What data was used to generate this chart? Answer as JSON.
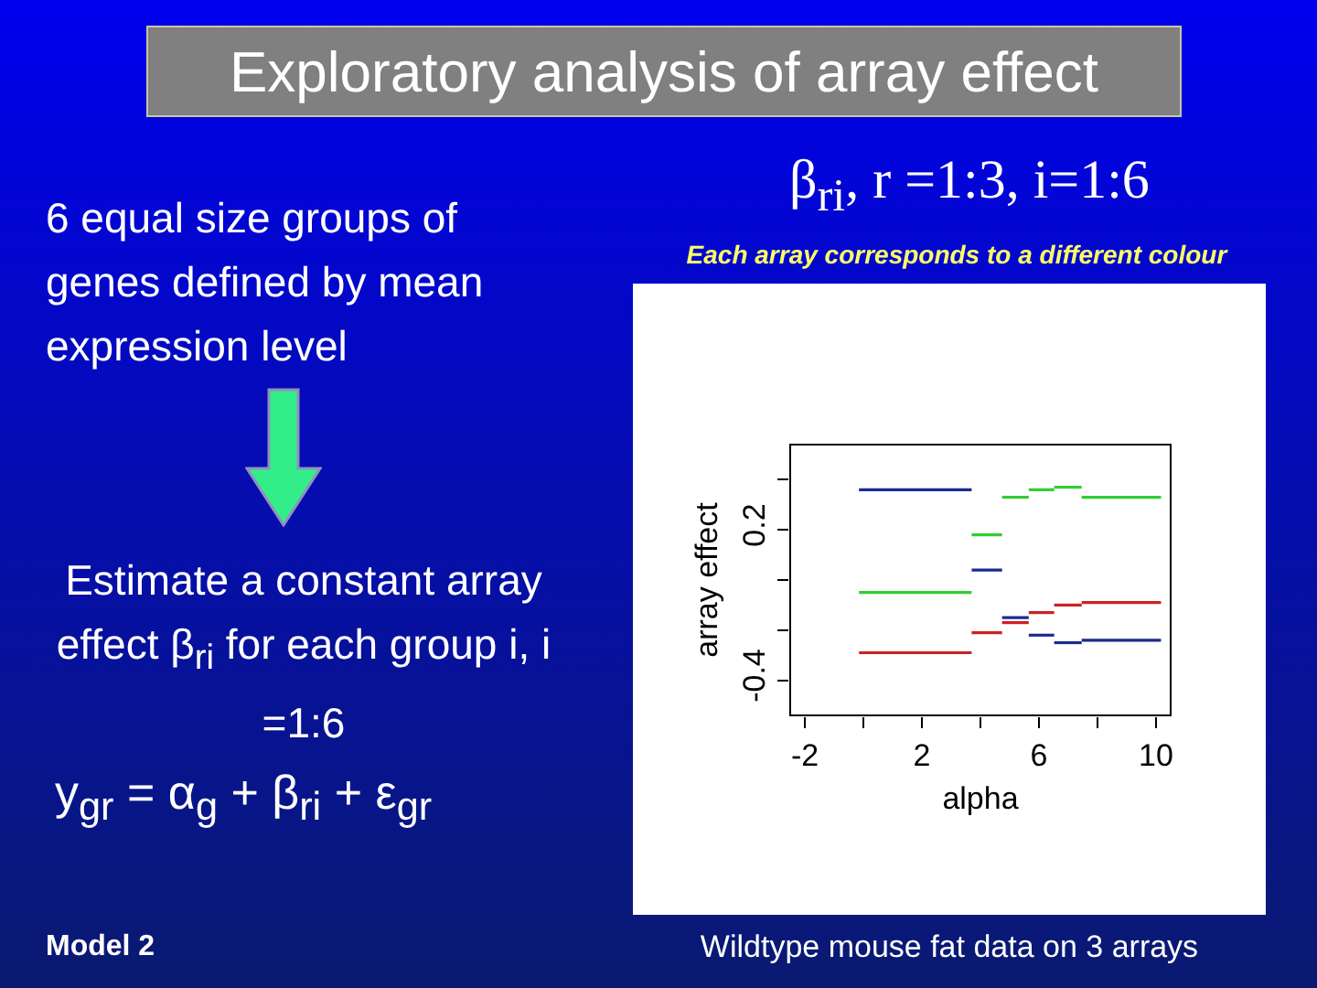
{
  "chart_data": {
    "type": "line",
    "title": "Exploratory analysis of array effect",
    "subtitle": "β$_{ri}$, r =1:3, i=1:6",
    "xlabel": "alpha",
    "ylabel": "array effect",
    "annotations": [
      "Each  array corresponds to a different colour",
      "6 equal size groups of genes defined by mean expression level",
      "Estimate a constant array effect β$_{ri}$ for each group i, i =1:6",
      "y$_{gr}$ =  α$_{g}$ + β$_{ri}$ + ε$_{gr}$",
      "Model 2",
      "Wildtype mouse fat data on 3 arrays"
    ],
    "x": [
      -0.15,
      3.7,
      null,
      3.7,
      4.74,
      null,
      4.74,
      5.65,
      null,
      5.65,
      6.52,
      null,
      6.52,
      7.46,
      null,
      7.46,
      10.17
    ],
    "series": [
      {
        "color": "#1c2a8c",
        "values": [
          0.36,
          0.36,
          null,
          0.04,
          0.04,
          null,
          -0.15,
          -0.15,
          null,
          -0.22,
          -0.22,
          null,
          -0.25,
          -0.25,
          null,
          -0.24,
          -0.24
        ]
      },
      {
        "color": "#33cc33",
        "values": [
          -0.05,
          -0.05,
          null,
          0.18,
          0.18,
          null,
          0.33,
          0.33,
          null,
          0.36,
          0.36,
          null,
          0.37,
          0.37,
          null,
          0.33,
          0.33
        ]
      },
      {
        "color": "#cc2222",
        "values": [
          -0.29,
          -0.29,
          null,
          -0.21,
          -0.21,
          null,
          -0.17,
          -0.17,
          null,
          -0.13,
          -0.13,
          null,
          -0.1,
          -0.1,
          null,
          -0.09,
          -0.09
        ]
      }
    ],
    "xlim": [
      -2.5,
      10.5
    ],
    "xticks": [
      -2,
      {
        "value": 0,
        "label": null
      },
      2,
      {
        "value": 4,
        "label": null
      },
      6,
      {
        "value": 8,
        "label": null
      },
      10
    ],
    "ylim": [
      -0.54,
      0.54
    ],
    "yticks": [
      -0.4,
      {
        "value": -0.2,
        "label": null
      },
      {
        "value": 0,
        "label": null
      },
      0.2,
      {
        "value": 0.4,
        "label": null
      }
    ],
    "grid": false,
    "legend": false,
    "marker": "none",
    "line_style": "solid"
  }
}
